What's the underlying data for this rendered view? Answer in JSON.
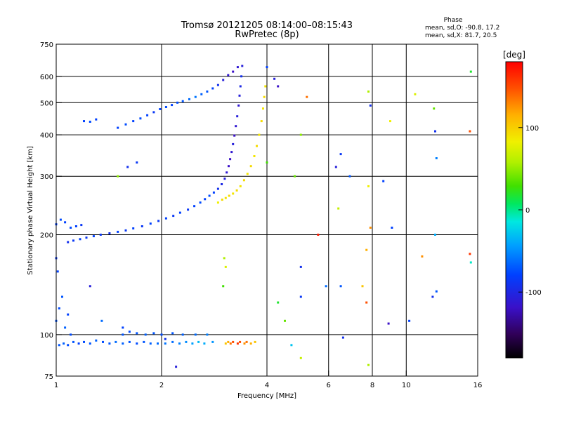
{
  "chart_data": {
    "type": "scatter",
    "title": "Tromsø 20121205 08:14:00–08:15:43",
    "subtitle": "RwPretec (8p)",
    "xlabel": "Frequency [MHz]",
    "ylabel": "Stationary phase Virtual Height [km]",
    "x_scale": "log",
    "y_scale": "log",
    "xlim": [
      1,
      16
    ],
    "ylim": [
      75,
      750
    ],
    "x_ticks": [
      1,
      2,
      4,
      6,
      8,
      10,
      16
    ],
    "y_ticks": [
      75,
      100,
      200,
      300,
      400,
      500,
      600,
      750
    ],
    "x_gridlines": [
      2,
      4,
      6,
      8,
      10
    ],
    "y_gridlines": [
      100,
      200,
      300,
      400,
      500,
      600
    ],
    "grid": true,
    "phase_info": {
      "heading": "Phase",
      "line1": "mean, sd,O: -90.8, 17.2",
      "line2": "mean, sd,X: 81.7, 20.5"
    },
    "colorbar": {
      "label": "[deg]",
      "range": [
        -180,
        180
      ],
      "ticks": [
        100,
        0,
        -100
      ],
      "colormap": "rainbow"
    },
    "series": [
      {
        "points": [
          [
            1.02,
            93,
            -80
          ],
          [
            1.05,
            94,
            -75
          ],
          [
            1.08,
            93,
            -85
          ],
          [
            1.12,
            95,
            -80
          ],
          [
            1.16,
            94,
            -90
          ],
          [
            1.2,
            95,
            -85
          ],
          [
            1.25,
            94,
            -80
          ],
          [
            1.3,
            96,
            -75
          ],
          [
            1.36,
            95,
            -85
          ],
          [
            1.42,
            94,
            -80
          ],
          [
            1.48,
            95,
            -70
          ],
          [
            1.55,
            94,
            -75
          ],
          [
            1.62,
            95,
            -80
          ],
          [
            1.7,
            94,
            -85
          ],
          [
            1.78,
            95,
            -80
          ],
          [
            1.86,
            94,
            -75
          ],
          [
            1.95,
            94,
            -70
          ],
          [
            2.05,
            94,
            -65
          ],
          [
            2.15,
            95,
            -70
          ],
          [
            2.25,
            94,
            -60
          ],
          [
            2.35,
            95,
            -55
          ],
          [
            2.45,
            94,
            -45
          ],
          [
            2.55,
            95,
            -35
          ],
          [
            2.65,
            94,
            -40
          ],
          [
            2.8,
            95,
            -50
          ]
        ]
      },
      {
        "points": [
          [
            1.55,
            100,
            -80
          ],
          [
            1.62,
            102,
            -85
          ],
          [
            1.7,
            101,
            -80
          ],
          [
            1.8,
            100,
            -75
          ],
          [
            1.9,
            101,
            -80
          ],
          [
            2.0,
            100,
            -85
          ],
          [
            2.15,
            101,
            -80
          ],
          [
            2.3,
            100,
            -75
          ],
          [
            2.5,
            100,
            -70
          ],
          [
            2.7,
            100,
            -60
          ]
        ]
      },
      {
        "points": [
          [
            3.05,
            94,
            110
          ],
          [
            3.1,
            95,
            120
          ],
          [
            3.15,
            94,
            140
          ],
          [
            3.2,
            95,
            150
          ],
          [
            3.3,
            94,
            160
          ],
          [
            3.35,
            95,
            150
          ],
          [
            3.45,
            94,
            130
          ],
          [
            3.5,
            95,
            140
          ],
          [
            3.6,
            94,
            120
          ],
          [
            3.7,
            95,
            110
          ]
        ]
      },
      {
        "points": [
          [
            1.08,
            190,
            -100
          ],
          [
            1.12,
            192,
            -95
          ],
          [
            1.17,
            194,
            -90
          ],
          [
            1.22,
            196,
            -95
          ],
          [
            1.28,
            198,
            -90
          ],
          [
            1.34,
            200,
            -95
          ],
          [
            1.42,
            202,
            -100
          ],
          [
            1.5,
            204,
            -90
          ],
          [
            1.58,
            206,
            -95
          ],
          [
            1.66,
            209,
            -90
          ],
          [
            1.76,
            212,
            -95
          ],
          [
            1.86,
            216,
            -90
          ],
          [
            1.96,
            220,
            -95
          ],
          [
            2.06,
            224,
            -90
          ],
          [
            2.16,
            228,
            -95
          ],
          [
            2.26,
            233,
            -90
          ],
          [
            2.38,
            238,
            -95
          ],
          [
            2.48,
            244,
            -90
          ],
          [
            2.58,
            250,
            -85
          ],
          [
            2.66,
            256,
            -90
          ],
          [
            2.74,
            262,
            -85
          ],
          [
            2.82,
            268,
            -90
          ],
          [
            2.9,
            275,
            -100
          ],
          [
            2.97,
            284,
            -105
          ],
          [
            3.03,
            295,
            -110
          ],
          [
            3.07,
            308,
            -115
          ],
          [
            3.11,
            322,
            -120
          ],
          [
            3.14,
            338,
            -120
          ],
          [
            3.17,
            355,
            -115
          ],
          [
            3.2,
            375,
            -110
          ],
          [
            3.23,
            398,
            -120
          ],
          [
            3.26,
            425,
            -115
          ],
          [
            3.29,
            455,
            -110
          ],
          [
            3.32,
            490,
            -115
          ],
          [
            3.34,
            525,
            -110
          ],
          [
            3.36,
            560,
            -105
          ],
          [
            3.38,
            600,
            -100
          ]
        ]
      },
      {
        "points": [
          [
            1.0,
            215,
            -90
          ],
          [
            1.03,
            222,
            -85
          ],
          [
            1.06,
            218,
            -90
          ],
          [
            1.1,
            210,
            -85
          ],
          [
            1.14,
            212,
            -90
          ],
          [
            1.18,
            214,
            -95
          ]
        ]
      },
      {
        "points": [
          [
            2.9,
            250,
            90
          ],
          [
            2.98,
            255,
            100
          ],
          [
            3.05,
            258,
            95
          ],
          [
            3.12,
            262,
            100
          ],
          [
            3.2,
            266,
            95
          ],
          [
            3.28,
            272,
            100
          ],
          [
            3.36,
            280,
            95
          ],
          [
            3.44,
            292,
            100
          ],
          [
            3.52,
            305,
            95
          ],
          [
            3.6,
            322,
            100
          ],
          [
            3.68,
            345,
            95
          ],
          [
            3.74,
            370,
            100
          ],
          [
            3.8,
            400,
            95
          ],
          [
            3.86,
            440,
            100
          ],
          [
            3.9,
            480,
            95
          ],
          [
            3.93,
            520,
            100
          ],
          [
            3.96,
            560,
            95
          ]
        ]
      },
      {
        "points": [
          [
            1.5,
            420,
            -90
          ],
          [
            1.58,
            430,
            -85
          ],
          [
            1.66,
            440,
            -90
          ],
          [
            1.74,
            448,
            -85
          ],
          [
            1.82,
            458,
            -90
          ],
          [
            1.9,
            468,
            -95
          ],
          [
            1.98,
            478,
            -90
          ],
          [
            2.06,
            485,
            -85
          ],
          [
            2.14,
            492,
            -90
          ],
          [
            2.22,
            500,
            -85
          ],
          [
            2.3,
            505,
            -80
          ],
          [
            2.4,
            512,
            -70
          ],
          [
            2.5,
            520,
            -65
          ],
          [
            2.6,
            530,
            -75
          ],
          [
            2.7,
            540,
            -80
          ],
          [
            2.8,
            552,
            -90
          ],
          [
            2.9,
            565,
            -100
          ],
          [
            3.0,
            585,
            -110
          ],
          [
            3.1,
            605,
            -115
          ],
          [
            3.2,
            620,
            -120
          ],
          [
            3.3,
            640,
            -115
          ],
          [
            3.4,
            645,
            -110
          ]
        ]
      },
      {
        "points": [
          [
            1.2,
            440,
            -90
          ],
          [
            1.25,
            438,
            -85
          ],
          [
            1.3,
            445,
            -90
          ]
        ]
      },
      {
        "points": [
          [
            1.0,
            110,
            -80
          ],
          [
            1.02,
            120,
            -85
          ],
          [
            1.04,
            130,
            -80
          ],
          [
            1.06,
            105,
            -75
          ],
          [
            1.08,
            115,
            -90
          ],
          [
            1.1,
            100,
            -85
          ],
          [
            1.01,
            155,
            -90
          ],
          [
            1.0,
            170,
            -95
          ]
        ]
      },
      {
        "points": [
          [
            4.0,
            640,
            -90
          ],
          [
            4.2,
            590,
            -110
          ],
          [
            4.3,
            560,
            -120
          ],
          [
            5.0,
            400,
            50
          ],
          [
            5.2,
            520,
            140
          ],
          [
            6.5,
            350,
            -95
          ],
          [
            6.9,
            300,
            -80
          ],
          [
            7.8,
            540,
            60
          ],
          [
            7.9,
            490,
            -100
          ],
          [
            8.6,
            290,
            -90
          ],
          [
            9.0,
            440,
            90
          ],
          [
            10.6,
            530,
            80
          ],
          [
            12.0,
            480,
            40
          ],
          [
            12.1,
            410,
            -100
          ],
          [
            12.2,
            340,
            -60
          ],
          [
            15.3,
            620,
            20
          ],
          [
            15.2,
            410,
            150
          ],
          [
            15.2,
            175,
            160
          ],
          [
            15.3,
            165,
            -10
          ],
          [
            4.8,
            300,
            40
          ],
          [
            4.0,
            330,
            30
          ],
          [
            6.3,
            320,
            -110
          ],
          [
            6.4,
            240,
            70
          ],
          [
            7.8,
            280,
            90
          ],
          [
            7.7,
            180,
            120
          ],
          [
            7.9,
            210,
            130
          ],
          [
            9.1,
            210,
            -90
          ],
          [
            7.5,
            140,
            110
          ],
          [
            7.7,
            125,
            150
          ],
          [
            6.5,
            140,
            -80
          ],
          [
            5.9,
            140,
            -70
          ],
          [
            5.6,
            200,
            170
          ],
          [
            5.0,
            160,
            -100
          ],
          [
            5.0,
            130,
            -95
          ],
          [
            4.3,
            125,
            20
          ],
          [
            4.5,
            110,
            40
          ],
          [
            4.7,
            93,
            -30
          ],
          [
            5.0,
            85,
            70
          ],
          [
            6.6,
            98,
            -100
          ],
          [
            7.8,
            81,
            60
          ],
          [
            8.9,
            108,
            -120
          ],
          [
            10.2,
            110,
            -90
          ],
          [
            11.9,
            130,
            -100
          ],
          [
            12.2,
            135,
            -80
          ],
          [
            12.1,
            200,
            -40
          ],
          [
            11.1,
            172,
            130
          ],
          [
            1.7,
            330,
            -95
          ],
          [
            1.5,
            300,
            50
          ],
          [
            1.25,
            140,
            -110
          ],
          [
            1.35,
            110,
            -70
          ],
          [
            1.55,
            105,
            -90
          ],
          [
            1.6,
            320,
            -100
          ],
          [
            2.05,
            97,
            -100
          ],
          [
            2.2,
            80,
            -110
          ],
          [
            3.02,
            170,
            60
          ],
          [
            3.05,
            160,
            80
          ],
          [
            3.0,
            140,
            30
          ]
        ]
      }
    ]
  }
}
